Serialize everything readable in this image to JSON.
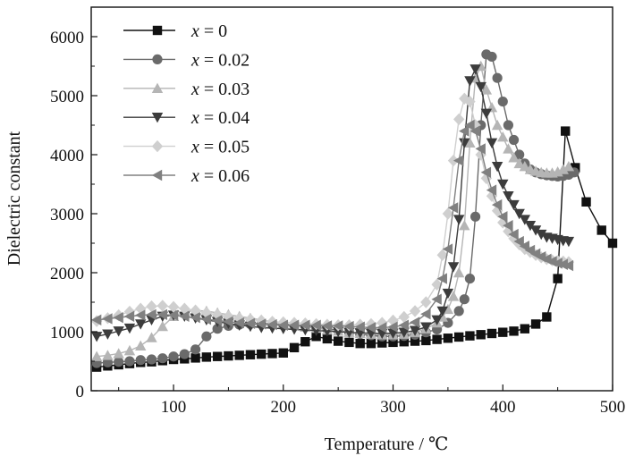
{
  "chart_data": {
    "type": "line",
    "xlabel": "Temperature / ℃",
    "ylabel": "Dielectric constant",
    "xlim": [
      25,
      500
    ],
    "ylim": [
      0,
      6500
    ],
    "x_ticks": [
      100,
      200,
      300,
      400,
      500
    ],
    "y_ticks": [
      0,
      1000,
      2000,
      3000,
      4000,
      5000,
      6000
    ],
    "legend_position": "top-left",
    "series": [
      {
        "name": "x = 0",
        "var": "x",
        "value_label": " = 0",
        "color": "#111111",
        "marker": "square",
        "x": [
          30,
          40,
          50,
          60,
          70,
          80,
          90,
          100,
          110,
          120,
          130,
          140,
          150,
          160,
          170,
          180,
          190,
          200,
          210,
          220,
          230,
          240,
          250,
          260,
          270,
          280,
          290,
          300,
          310,
          320,
          330,
          340,
          350,
          360,
          370,
          380,
          390,
          400,
          410,
          420,
          430,
          440,
          450,
          457,
          466,
          476,
          490,
          500
        ],
        "y": [
          400,
          420,
          440,
          460,
          480,
          490,
          510,
          530,
          540,
          555,
          570,
          580,
          590,
          600,
          610,
          620,
          630,
          640,
          730,
          830,
          920,
          880,
          840,
          820,
          800,
          800,
          810,
          820,
          830,
          840,
          850,
          870,
          890,
          910,
          930,
          950,
          970,
          990,
          1010,
          1050,
          1130,
          1250,
          1900,
          4400,
          3780,
          3200,
          2720,
          2500
        ]
      },
      {
        "name": "x = 0.02",
        "var": "x",
        "value_label": " = 0.02",
        "color": "#6a6a6a",
        "marker": "circle",
        "x": [
          30,
          40,
          50,
          60,
          70,
          80,
          90,
          100,
          110,
          120,
          130,
          140,
          150,
          160,
          170,
          180,
          190,
          200,
          210,
          220,
          230,
          240,
          250,
          260,
          270,
          280,
          290,
          300,
          310,
          320,
          330,
          340,
          350,
          360,
          365,
          370,
          375,
          380,
          385,
          390,
          395,
          400,
          405,
          410,
          415,
          420,
          425,
          430,
          435,
          440,
          445,
          450,
          455,
          460,
          465
        ],
        "y": [
          470,
          480,
          490,
          500,
          520,
          530,
          550,
          580,
          620,
          700,
          920,
          1050,
          1100,
          1120,
          1130,
          1130,
          1120,
          1110,
          1100,
          1090,
          1070,
          1050,
          1020,
          990,
          960,
          940,
          920,
          920,
          930,
          950,
          990,
          1040,
          1150,
          1350,
          1550,
          1900,
          2950,
          4500,
          5700,
          5660,
          5300,
          4900,
          4500,
          4250,
          4000,
          3850,
          3750,
          3700,
          3670,
          3650,
          3640,
          3630,
          3640,
          3660,
          3700
        ]
      },
      {
        "name": "x = 0.03",
        "var": "x",
        "value_label": " = 0.03",
        "color": "#b5b5b5",
        "marker": "triangle-up",
        "x": [
          30,
          40,
          50,
          60,
          70,
          80,
          90,
          100,
          110,
          120,
          130,
          140,
          150,
          160,
          170,
          180,
          190,
          200,
          210,
          220,
          230,
          240,
          250,
          260,
          270,
          280,
          290,
          300,
          310,
          320,
          330,
          340,
          345,
          350,
          355,
          360,
          365,
          370,
          375,
          380,
          385,
          390,
          395,
          400,
          405,
          410,
          415,
          420,
          425,
          430,
          435,
          440,
          445,
          450,
          455,
          460
        ],
        "y": [
          580,
          600,
          630,
          680,
          760,
          900,
          1090,
          1260,
          1340,
          1360,
          1350,
          1320,
          1290,
          1260,
          1230,
          1200,
          1170,
          1140,
          1110,
          1080,
          1060,
          1030,
          1010,
          990,
          970,
          960,
          950,
          950,
          960,
          990,
          1050,
          1150,
          1250,
          1380,
          1600,
          2000,
          2800,
          4200,
          5300,
          5500,
          5100,
          4800,
          4500,
          4300,
          4100,
          3950,
          3850,
          3800,
          3750,
          3720,
          3700,
          3690,
          3690,
          3710,
          3750,
          3800
        ]
      },
      {
        "name": "x = 0.04",
        "var": "x",
        "value_label": " = 0.04",
        "color": "#3c3c3c",
        "marker": "triangle-down",
        "x": [
          30,
          40,
          50,
          60,
          70,
          80,
          90,
          100,
          110,
          120,
          130,
          140,
          150,
          160,
          170,
          180,
          190,
          200,
          210,
          220,
          230,
          240,
          250,
          260,
          270,
          280,
          290,
          300,
          310,
          320,
          330,
          340,
          345,
          350,
          355,
          360,
          365,
          370,
          375,
          380,
          385,
          390,
          395,
          400,
          405,
          410,
          415,
          420,
          425,
          430,
          435,
          440,
          445,
          450,
          455,
          460
        ],
        "y": [
          920,
          960,
          1010,
          1060,
          1130,
          1200,
          1260,
          1280,
          1260,
          1230,
          1200,
          1170,
          1140,
          1110,
          1090,
          1070,
          1060,
          1050,
          1040,
          1030,
          1020,
          1010,
          1000,
          990,
          980,
          975,
          970,
          975,
          990,
          1020,
          1080,
          1200,
          1350,
          1650,
          2100,
          2900,
          4200,
          5250,
          5450,
          5150,
          4700,
          4200,
          3800,
          3500,
          3300,
          3150,
          3000,
          2900,
          2800,
          2720,
          2650,
          2600,
          2580,
          2560,
          2540,
          2530
        ]
      },
      {
        "name": "x = 0.05",
        "var": "x",
        "value_label": " = 0.05",
        "color": "#cfcfcf",
        "marker": "diamond",
        "x": [
          30,
          40,
          50,
          60,
          70,
          80,
          90,
          100,
          110,
          120,
          130,
          140,
          150,
          160,
          170,
          180,
          190,
          200,
          210,
          220,
          230,
          240,
          250,
          260,
          270,
          280,
          290,
          300,
          310,
          320,
          330,
          340,
          345,
          350,
          355,
          360,
          365,
          370,
          375,
          380,
          385,
          390,
          395,
          400,
          405,
          410,
          415,
          420,
          425,
          430,
          435,
          440,
          445,
          450,
          455,
          460
        ],
        "y": [
          1180,
          1230,
          1280,
          1340,
          1390,
          1430,
          1440,
          1420,
          1390,
          1360,
          1320,
          1290,
          1260,
          1230,
          1210,
          1190,
          1170,
          1160,
          1150,
          1140,
          1130,
          1120,
          1110,
          1110,
          1120,
          1130,
          1150,
          1190,
          1250,
          1350,
          1500,
          1800,
          2300,
          3000,
          3900,
          4600,
          4950,
          4900,
          4500,
          4000,
          3600,
          3300,
          3050,
          2850,
          2700,
          2580,
          2480,
          2400,
          2350,
          2300,
          2260,
          2230,
          2210,
          2200,
          2190,
          2180
        ]
      },
      {
        "name": "x = 0.06",
        "var": "x",
        "value_label": " = 0.06",
        "color": "#808080",
        "marker": "triangle-left",
        "x": [
          30,
          40,
          50,
          60,
          70,
          80,
          90,
          100,
          110,
          120,
          130,
          140,
          150,
          160,
          170,
          180,
          190,
          200,
          210,
          220,
          230,
          240,
          250,
          260,
          270,
          280,
          290,
          300,
          310,
          320,
          330,
          340,
          345,
          350,
          355,
          360,
          365,
          370,
          375,
          380,
          385,
          390,
          395,
          400,
          405,
          410,
          415,
          420,
          425,
          430,
          435,
          440,
          445,
          450,
          455,
          460
        ],
        "y": [
          1200,
          1220,
          1240,
          1260,
          1280,
          1290,
          1290,
          1280,
          1260,
          1240,
          1210,
          1190,
          1170,
          1150,
          1140,
          1130,
          1120,
          1110,
          1110,
          1110,
          1110,
          1100,
          1100,
          1090,
          1080,
          1070,
          1070,
          1080,
          1110,
          1160,
          1300,
          1550,
          1900,
          2400,
          3100,
          3900,
          4400,
          4500,
          4400,
          4100,
          3700,
          3400,
          3150,
          2950,
          2800,
          2650,
          2530,
          2450,
          2380,
          2320,
          2270,
          2230,
          2190,
          2160,
          2140,
          2120
        ]
      }
    ]
  }
}
